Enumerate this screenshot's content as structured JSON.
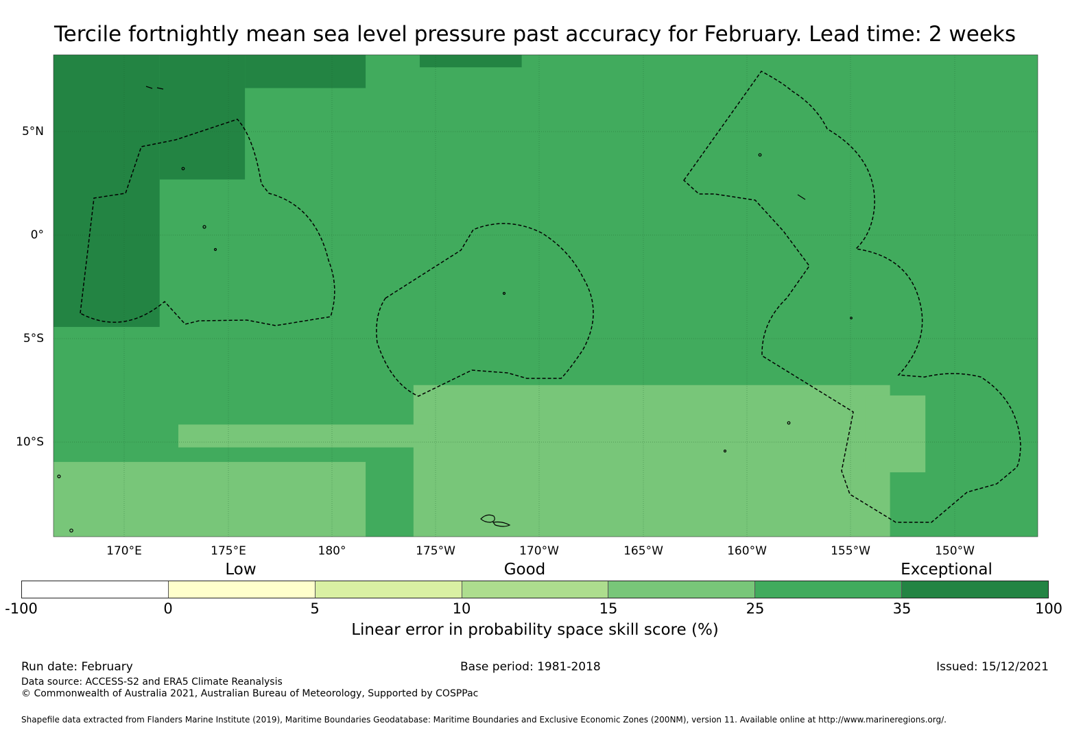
{
  "title": "Tercile fortnightly mean sea level pressure past accuracy for February. Lead time: 2 weeks",
  "map": {
    "lon_labels": [
      "170°E",
      "175°E",
      "180°",
      "175°W",
      "170°W",
      "165°W",
      "160°W",
      "155°W",
      "150°W"
    ],
    "lat_labels": [
      "5°N",
      "0°",
      "5°S",
      "10°S"
    ],
    "extent": {
      "lon_min": 166.6,
      "lon_max": 213.9,
      "lat_min": -14.6,
      "lat_max": 8.6
    },
    "fill_value": 30,
    "regions": [
      {
        "name": "west-exceptional-core",
        "value": 40,
        "lon": [
          166.6,
          171.7
        ],
        "lat": [
          -4.5,
          8.6
        ]
      },
      {
        "name": "northwest-exceptional",
        "value": 40,
        "lon": [
          171.7,
          175.8
        ],
        "lat": [
          2.6,
          8.6
        ]
      },
      {
        "name": "north-exceptional-strip",
        "value": 40,
        "lon": [
          175.8,
          181.6
        ],
        "lat": [
          7.0,
          8.6
        ]
      },
      {
        "name": "north-central-exceptional",
        "value": 40,
        "lon": [
          184.2,
          189.1
        ],
        "lat": [
          8.0,
          8.6
        ]
      },
      {
        "name": "south-good-band-east",
        "value": 20,
        "lon": [
          183.9,
          206.8
        ],
        "lat": [
          -14.6,
          -7.3
        ]
      },
      {
        "name": "south-good-band-southwest",
        "value": 20,
        "lon": [
          166.6,
          181.6
        ],
        "lat": [
          -14.6,
          -11.0
        ]
      },
      {
        "name": "south-good-band-mid",
        "value": 20,
        "lon": [
          172.6,
          184.6
        ],
        "lat": [
          -10.3,
          -9.2
        ]
      },
      {
        "name": "southeast-good-patch",
        "value": 20,
        "lon": [
          205.6,
          208.5
        ],
        "lat": [
          -11.5,
          -7.8
        ]
      }
    ],
    "eez_boundaries": [
      {
        "name": "kiribati-gilberts-eez"
      },
      {
        "name": "tuvalu-eez"
      },
      {
        "name": "kiribati-line-islands-eez"
      }
    ]
  },
  "colorbar": {
    "category_labels": [
      "Low",
      "Good",
      "Exceptional"
    ],
    "ticks": [
      "-100",
      "0",
      "5",
      "10",
      "15",
      "25",
      "35",
      "100"
    ],
    "colors": [
      "#ffffff",
      "#ffffcc",
      "#d9f0a3",
      "#addd8e",
      "#78c679",
      "#41ab5d",
      "#238443"
    ],
    "title": "Linear error in probability space skill score (%)"
  },
  "footer": {
    "run_date": "Run date: February",
    "base_period": "Base period: 1981-2018",
    "issued": "Issued: 15/12/2021",
    "data_source": "Data source: ACCESS-S2 and ERA5 Climate Reanalysis",
    "copyright": "© Commonwealth of Australia 2021, Australian Bureau of Meteorology, Supported by COSPPac",
    "shapefile_note": "Shapefile data extracted from Flanders Marine Institute (2019), Maritime Boundaries Geodatabase: Maritime Boundaries and Exclusive Economic Zones (200NM), version 11. Available online at http://www.marineregions.org/."
  }
}
